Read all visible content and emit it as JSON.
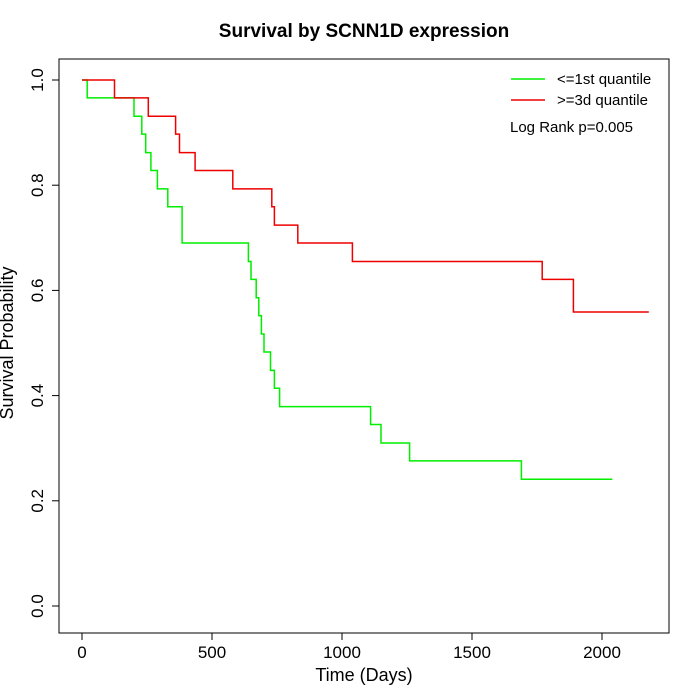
{
  "chart_data": {
    "type": "line",
    "title": "Survival by SCNN1D expression",
    "xlabel": "Time (Days)",
    "ylabel": "Survival Probability",
    "xlim": [
      0,
      2180
    ],
    "ylim": [
      0,
      1.0
    ],
    "x_ticks": [
      0,
      500,
      1000,
      1500,
      2000
    ],
    "y_ticks": [
      0.0,
      0.2,
      0.4,
      0.6,
      0.8,
      1.0
    ],
    "x_tick_labels": [
      "0",
      "500",
      "1000",
      "1500",
      "2000"
    ],
    "y_tick_labels": [
      "0.0",
      "0.2",
      "0.4",
      "0.6",
      "0.8",
      "1.0"
    ],
    "grid": false,
    "legend_position": "top-right",
    "annotation": "Log Rank p=0.005",
    "series": [
      {
        "name": "<=1st quantile",
        "color": "#00ee00",
        "step_x": [
          0,
          20,
          200,
          230,
          245,
          265,
          290,
          310,
          330,
          385,
          640,
          645,
          650,
          670,
          680,
          690,
          695,
          700,
          725,
          740,
          760,
          1110,
          1150,
          1260,
          1690,
          2040
        ],
        "step_y": [
          1.0,
          0.966,
          0.931,
          0.897,
          0.862,
          0.828,
          0.793,
          0.793,
          0.759,
          0.69,
          0.655,
          0.655,
          0.621,
          0.586,
          0.552,
          0.517,
          0.517,
          0.483,
          0.448,
          0.414,
          0.379,
          0.345,
          0.31,
          0.276,
          0.241,
          0.241
        ]
      },
      {
        "name": ">=3d quantile",
        "color": "#ee0000",
        "step_x": [
          0,
          125,
          255,
          360,
          375,
          435,
          580,
          730,
          740,
          830,
          1040,
          1770,
          1890,
          2180
        ],
        "step_y": [
          1.0,
          0.966,
          0.931,
          0.897,
          0.862,
          0.828,
          0.793,
          0.759,
          0.724,
          0.69,
          0.655,
          0.621,
          0.559,
          0.559
        ]
      }
    ]
  }
}
